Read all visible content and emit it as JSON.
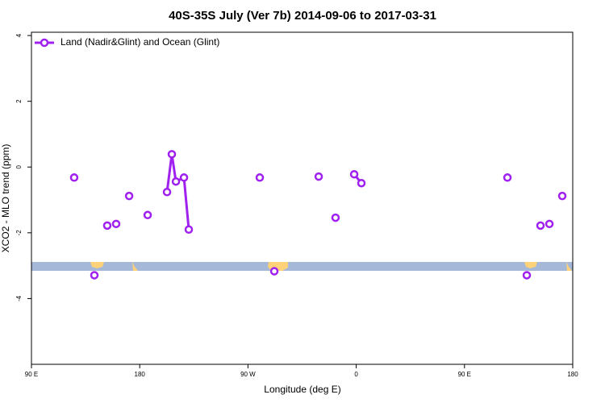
{
  "chart_data": {
    "type": "line",
    "title": "40S-35S July (Ver 7b)   2014-09-06 to 2017-03-31",
    "x_label": "Longitude (deg E)",
    "y_label": "XCO2 - MLO trend (ppm)",
    "legend": "topleft",
    "xlim": [
      90,
      540
    ],
    "ylim": [
      -6,
      4.1
    ],
    "xticks": [
      {
        "value": 90,
        "label": "90 E"
      },
      {
        "value": 180,
        "label": "180"
      },
      {
        "value": 270,
        "label": "90 W"
      },
      {
        "value": 360,
        "label": "0"
      },
      {
        "value": 450,
        "label": "90 E"
      },
      {
        "value": 540,
        "label": "180"
      }
    ],
    "yticks": [
      4,
      2,
      0,
      -2,
      -4
    ],
    "series": [
      {
        "name": "Land (Nadir&Glint) and Ocean (Glint)",
        "color": "#a020f0",
        "x": [
          125.5,
          142.3,
          153.0,
          160.4,
          171.2,
          186.6,
          202.7,
          206.7,
          210.1,
          216.8,
          220.8,
          279.8,
          291.9,
          328.8,
          342.8,
          358.3,
          364.3,
          485.7,
          501.8,
          513.2,
          520.6,
          531.3
        ],
        "values": [
          -0.32,
          -3.29,
          -1.78,
          -1.73,
          -0.88,
          -1.46,
          -0.76,
          0.39,
          -0.44,
          -0.32,
          -1.9,
          -0.32,
          -3.17,
          -0.29,
          -1.54,
          -0.22,
          -0.49,
          -0.32,
          -3.29,
          -1.78,
          -1.73,
          -0.88
        ]
      }
    ]
  }
}
